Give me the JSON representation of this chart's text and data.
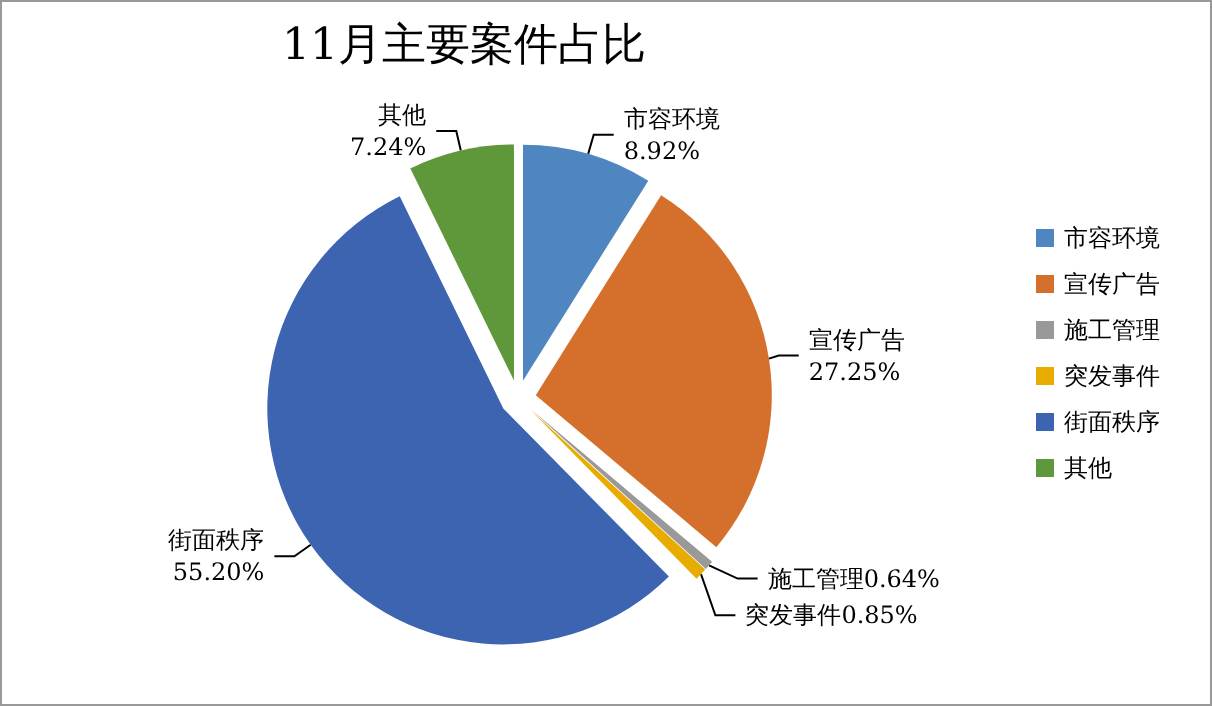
{
  "chart_data": {
    "type": "pie",
    "title": "11月主要案件占比",
    "categories": [
      "市容环境",
      "宣传广告",
      "施工管理",
      "突发事件",
      "街面秩序",
      "其他"
    ],
    "values": [
      8.92,
      27.25,
      0.64,
      0.85,
      55.2,
      7.24
    ],
    "value_labels": [
      "8.92%",
      "27.25%",
      "0.64%",
      "0.85%",
      "55.20%",
      "7.24%"
    ],
    "colors": [
      "#4f86c0",
      "#d4702c",
      "#999999",
      "#e8ac00",
      "#3c64b0",
      "#5f983a"
    ],
    "legend": "right"
  }
}
